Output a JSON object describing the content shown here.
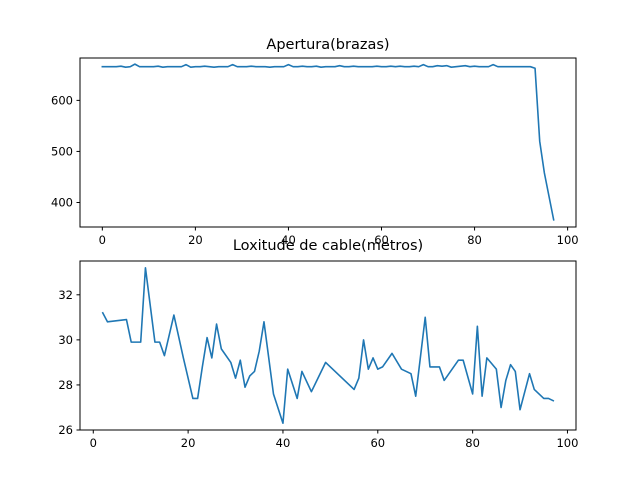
{
  "chart_data": [
    {
      "type": "line",
      "title": "Apertura(brazas)",
      "xlabel": "",
      "ylabel": "",
      "xlim": [
        -4.8,
        101.8
      ],
      "ylim": [
        352,
        683
      ],
      "xticks": [
        0,
        20,
        40,
        60,
        80,
        100
      ],
      "yticks": [
        400,
        500,
        600
      ],
      "grid": false,
      "color": "#1f77b4",
      "x": [
        0,
        1,
        2,
        3,
        4,
        5,
        6,
        7,
        8,
        9,
        10,
        11,
        12,
        13,
        14,
        15,
        16,
        17,
        18,
        19,
        20,
        21,
        22,
        23,
        24,
        25,
        26,
        27,
        28,
        29,
        30,
        31,
        32,
        33,
        34,
        35,
        36,
        37,
        38,
        39,
        40,
        41,
        42,
        43,
        44,
        45,
        46,
        47,
        48,
        49,
        50,
        51,
        52,
        53,
        54,
        55,
        56,
        57,
        58,
        59,
        60,
        61,
        62,
        63,
        64,
        65,
        66,
        67,
        68,
        69,
        70,
        71,
        72,
        73,
        74,
        75,
        76,
        77,
        78,
        79,
        80,
        81,
        82,
        83,
        84,
        85,
        86,
        87,
        88,
        89,
        90,
        91,
        92,
        93,
        94,
        95,
        96,
        97
      ],
      "y": [
        666,
        666,
        666,
        666,
        667,
        665,
        666,
        671,
        666,
        666,
        666,
        666,
        667,
        665,
        666,
        666,
        666,
        666,
        670,
        665,
        666,
        666,
        667,
        666,
        665,
        666,
        666,
        666,
        670,
        666,
        666,
        666,
        667,
        666,
        666,
        666,
        665,
        666,
        666,
        666,
        670,
        666,
        666,
        667,
        666,
        666,
        667,
        665,
        666,
        666,
        666,
        668,
        666,
        666,
        667,
        666,
        666,
        666,
        666,
        667,
        666,
        666,
        667,
        666,
        667,
        666,
        666,
        667,
        666,
        670,
        666,
        666,
        668,
        667,
        668,
        665,
        666,
        667,
        668,
        666,
        667,
        666,
        666,
        666,
        670,
        666,
        666,
        666,
        666,
        666,
        666,
        666,
        666,
        663,
        520,
        458,
        412,
        366
      ]
    },
    {
      "type": "line",
      "title": "Loxitude de cable(metros)",
      "xlabel": "",
      "ylabel": "",
      "xlim": [
        -2.8,
        101.8
      ],
      "ylim": [
        26.0,
        33.5
      ],
      "xticks": [
        0,
        20,
        40,
        60,
        80,
        100
      ],
      "yticks": [
        26,
        28,
        30,
        32
      ],
      "grid": false,
      "color": "#1f77b4",
      "x": [
        2,
        3,
        7,
        8,
        10,
        11,
        13,
        14,
        15,
        17,
        19,
        21,
        22,
        23,
        24,
        25,
        26,
        27,
        29,
        30,
        31,
        32,
        33,
        34,
        35,
        36,
        37,
        38,
        40,
        41,
        43,
        44,
        46,
        49,
        55,
        56,
        57,
        58,
        59,
        60,
        61,
        63,
        65,
        67,
        68,
        70,
        71,
        73,
        74,
        75,
        76,
        77,
        78,
        80,
        81,
        82,
        83,
        85,
        86,
        87,
        88,
        89,
        90,
        91,
        92,
        93,
        95,
        96,
        97
      ],
      "y": [
        31.2,
        30.8,
        30.9,
        29.9,
        29.9,
        33.2,
        29.9,
        29.9,
        29.3,
        31.1,
        29.2,
        27.4,
        27.4,
        28.8,
        30.1,
        29.2,
        30.7,
        29.6,
        29.0,
        28.3,
        29.1,
        27.9,
        28.4,
        28.6,
        29.5,
        30.8,
        29.2,
        27.6,
        26.3,
        28.7,
        27.4,
        28.6,
        27.7,
        29.0,
        27.8,
        28.3,
        30.0,
        28.7,
        29.2,
        28.7,
        28.8,
        29.4,
        28.7,
        28.5,
        27.5,
        31.0,
        28.8,
        28.8,
        28.2,
        28.5,
        28.8,
        29.1,
        29.1,
        27.6,
        30.6,
        27.5,
        29.2,
        28.7,
        27.0,
        28.2,
        28.9,
        28.6,
        26.9,
        27.7,
        28.5,
        27.8,
        27.4,
        27.4,
        27.3
      ]
    }
  ]
}
